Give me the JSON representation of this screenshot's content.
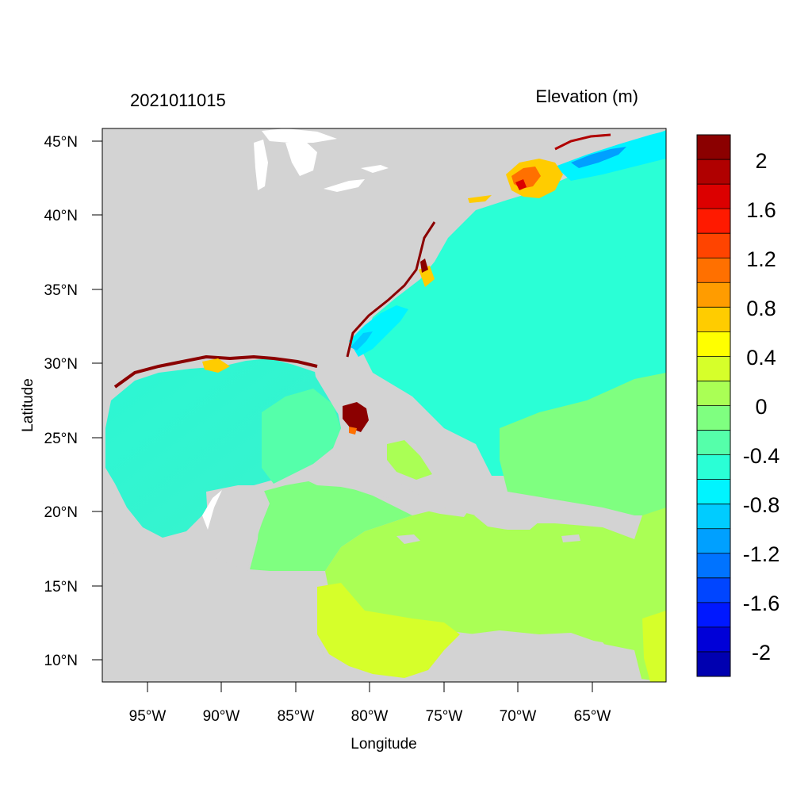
{
  "header": {
    "date_label": "2021011015",
    "variable_label": "Elevation (m)"
  },
  "axes": {
    "xlabel": "Longitude",
    "ylabel": "Latitude",
    "x_ticks": [
      "95°W",
      "90°W",
      "85°W",
      "80°W",
      "75°W",
      "70°W",
      "65°W"
    ],
    "y_ticks": [
      "45°N",
      "40°N",
      "35°N",
      "30°N",
      "25°N",
      "20°N",
      "15°N",
      "10°N"
    ]
  },
  "colorbar": {
    "labels": [
      "2",
      "1.6",
      "1.2",
      "0.8",
      "0.4",
      "0",
      "-0.4",
      "-0.8",
      "-1.2",
      "-1.6",
      "-2"
    ],
    "colors": [
      "#8b0000",
      "#b00000",
      "#dc0000",
      "#ff1a00",
      "#ff4400",
      "#ff7000",
      "#ff9c00",
      "#ffcc00",
      "#ffff00",
      "#d6ff2a",
      "#aaff55",
      "#7fff80",
      "#55ffaa",
      "#2affd6",
      "#00f4ff",
      "#00ccff",
      "#00a0ff",
      "#0073ff",
      "#0045ff",
      "#0018ff",
      "#0000d8",
      "#0000b0"
    ]
  },
  "colors": {
    "land": "#d3d3d3",
    "lakes": "#ffffff"
  }
}
